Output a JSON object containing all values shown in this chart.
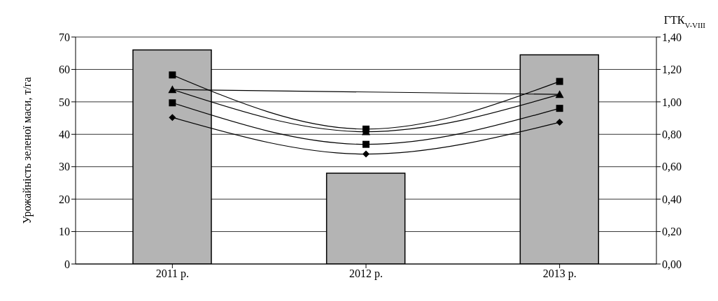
{
  "chart_data": {
    "type": "bar",
    "categories": [
      "2011 р.",
      "2012 р.",
      "2013 р."
    ],
    "ylabel": "Урожайність зеленої маси, т/га",
    "y2label": "ГТК$_{V-VIII}$",
    "ylim": [
      0,
      70
    ],
    "yticks": [
      0,
      10,
      20,
      30,
      40,
      50,
      60,
      70
    ],
    "y2lim": [
      0,
      1.4
    ],
    "y2ticks": [
      {
        "value": 0,
        "label": "0,00"
      },
      {
        "value": 0.2,
        "label": "0,20"
      },
      {
        "value": 0.4,
        "label": "0,40"
      },
      {
        "value": 0.6,
        "label": "0,60"
      },
      {
        "value": 0.8,
        "label": "0,80"
      },
      {
        "value": 1,
        "label": "1,00"
      },
      {
        "value": 1.2,
        "label": "1,20"
      },
      {
        "value": 1.4,
        "label": "1,40"
      }
    ],
    "grid": "y",
    "series": [
      {
        "axis": "y2",
        "color": "#b4b4b4",
        "values": [
          1.32,
          0.56,
          1.29
        ]
      },
      {
        "type": "line",
        "color": "#000000",
        "marker": "square",
        "values": [
          58.3,
          41.6,
          56.3
        ]
      },
      {
        "type": "line",
        "color": "#000000",
        "marker": "triangle",
        "values": [
          53.8,
          40.8,
          52.3
        ]
      },
      {
        "type": "line",
        "color": "#000000",
        "marker": "square",
        "values": [
          49.7,
          36.9,
          48.0
        ]
      },
      {
        "type": "line",
        "color": "#000000",
        "marker": "diamond",
        "values": [
          45.2,
          33.9,
          43.7
        ]
      },
      {
        "type": "line",
        "color": "#000000",
        "marker": "none",
        "values": [
          53.8,
          null,
          52.3
        ]
      }
    ]
  }
}
